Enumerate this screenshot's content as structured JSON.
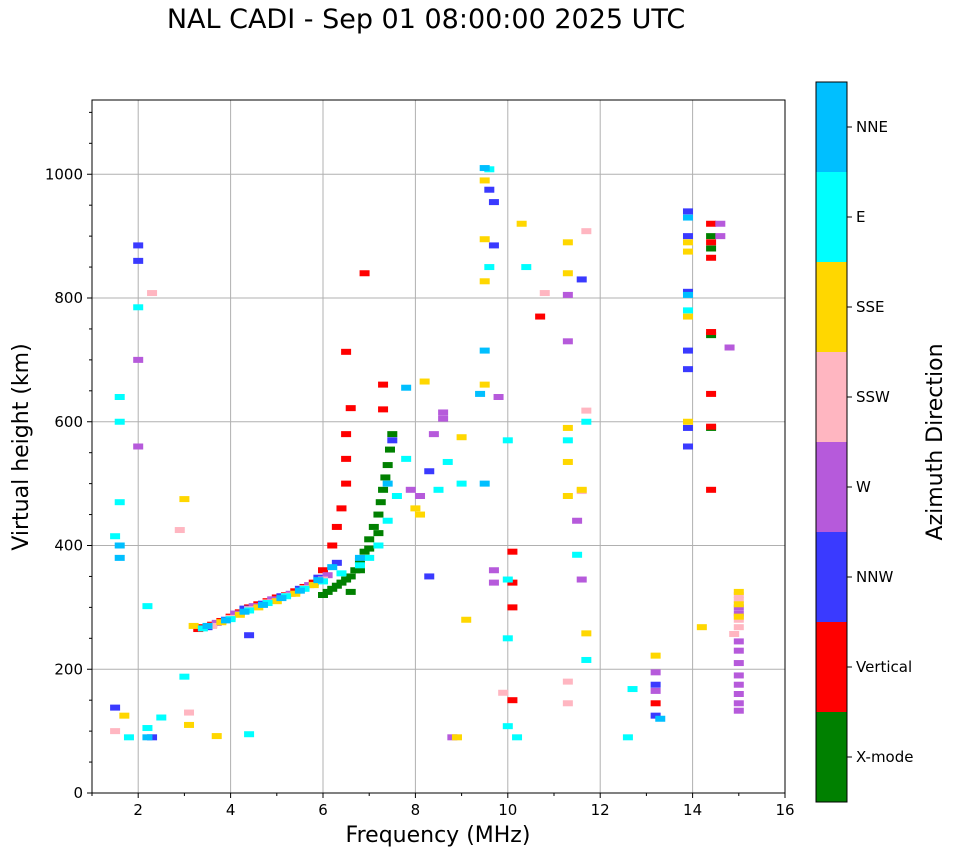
{
  "chart_data": {
    "type": "scatter",
    "title": "NAL CADI - Sep 01 08:00:00 2025 UTC",
    "xlabel": "Frequency (MHz)",
    "ylabel": "Virtual height (km)",
    "xlim": [
      1,
      16
    ],
    "ylim": [
      0,
      1120
    ],
    "xticks": [
      2,
      4,
      6,
      8,
      10,
      12,
      14,
      16
    ],
    "yticks": [
      0,
      200,
      400,
      600,
      800,
      1000
    ],
    "grid": true,
    "colorbar": {
      "label": "Azimuth Direction",
      "categories": [
        {
          "name": "X-mode",
          "color": "#008000"
        },
        {
          "name": "Vertical",
          "color": "#ff0000"
        },
        {
          "name": "NNW",
          "color": "#3a3aff"
        },
        {
          "name": "W",
          "color": "#b65adb"
        },
        {
          "name": "SSW",
          "color": "#ffb6c1"
        },
        {
          "name": "SSE",
          "color": "#ffd700"
        },
        {
          "name": "E",
          "color": "#00ffff"
        },
        {
          "name": "NNE",
          "color": "#00bfff"
        }
      ]
    },
    "series": [
      {
        "name": "X-mode",
        "points": [
          [
            6.0,
            320
          ],
          [
            6.1,
            325
          ],
          [
            6.2,
            330
          ],
          [
            6.3,
            335
          ],
          [
            6.4,
            340
          ],
          [
            6.5,
            345
          ],
          [
            6.6,
            350
          ],
          [
            6.7,
            360
          ],
          [
            6.8,
            375
          ],
          [
            6.9,
            390
          ],
          [
            7.0,
            410
          ],
          [
            7.1,
            430
          ],
          [
            7.2,
            450
          ],
          [
            7.25,
            470
          ],
          [
            7.3,
            490
          ],
          [
            7.35,
            510
          ],
          [
            7.4,
            530
          ],
          [
            7.45,
            555
          ],
          [
            7.5,
            580
          ],
          [
            6.6,
            325
          ],
          [
            6.8,
            360
          ],
          [
            7.0,
            395
          ],
          [
            7.2,
            420
          ],
          [
            14.4,
            880
          ],
          [
            14.4,
            900
          ],
          [
            14.4,
            740
          ],
          [
            14.4,
            590
          ]
        ]
      },
      {
        "name": "Vertical",
        "points": [
          [
            3.3,
            265
          ],
          [
            3.4,
            268
          ],
          [
            3.6,
            272
          ],
          [
            3.8,
            278
          ],
          [
            4.0,
            285
          ],
          [
            4.2,
            292
          ],
          [
            4.4,
            300
          ],
          [
            4.6,
            305
          ],
          [
            4.8,
            310
          ],
          [
            5.0,
            316
          ],
          [
            5.2,
            320
          ],
          [
            5.4,
            326
          ],
          [
            5.6,
            333
          ],
          [
            5.8,
            340
          ],
          [
            6.0,
            360
          ],
          [
            6.2,
            400
          ],
          [
            6.3,
            430
          ],
          [
            6.4,
            460
          ],
          [
            6.5,
            500
          ],
          [
            6.5,
            540
          ],
          [
            6.5,
            580
          ],
          [
            6.5,
            713
          ],
          [
            6.6,
            622
          ],
          [
            6.9,
            840
          ],
          [
            7.3,
            620
          ],
          [
            7.3,
            660
          ],
          [
            14.4,
            920
          ],
          [
            14.4,
            890
          ],
          [
            14.4,
            865
          ],
          [
            14.4,
            745
          ],
          [
            14.4,
            645
          ],
          [
            14.4,
            592
          ],
          [
            14.4,
            490
          ],
          [
            13.2,
            145
          ],
          [
            10.1,
            150
          ],
          [
            10.1,
            300
          ],
          [
            10.1,
            340
          ],
          [
            10.1,
            390
          ],
          [
            10.7,
            770
          ]
        ]
      },
      {
        "name": "NNW",
        "points": [
          [
            3.5,
            268
          ],
          [
            3.9,
            280
          ],
          [
            4.3,
            298
          ],
          [
            4.7,
            306
          ],
          [
            5.1,
            318
          ],
          [
            5.5,
            330
          ],
          [
            5.9,
            348
          ],
          [
            6.3,
            372
          ],
          [
            7.5,
            570
          ],
          [
            8.3,
            520
          ],
          [
            8.3,
            350
          ],
          [
            9.7,
            955
          ],
          [
            9.6,
            975
          ],
          [
            9.7,
            885
          ],
          [
            11.6,
            830
          ],
          [
            13.9,
            940
          ],
          [
            13.9,
            900
          ],
          [
            13.9,
            810
          ],
          [
            13.9,
            715
          ],
          [
            13.9,
            685
          ],
          [
            13.9,
            560
          ],
          [
            13.9,
            590
          ],
          [
            13.2,
            175
          ],
          [
            13.2,
            125
          ],
          [
            2.0,
            885
          ],
          [
            2.0,
            860
          ],
          [
            1.5,
            138
          ],
          [
            2.3,
            90
          ],
          [
            4.4,
            255
          ]
        ]
      },
      {
        "name": "W",
        "points": [
          [
            3.7,
            275
          ],
          [
            4.1,
            290
          ],
          [
            4.5,
            302
          ],
          [
            4.9,
            313
          ],
          [
            5.3,
            322
          ],
          [
            5.7,
            336
          ],
          [
            6.1,
            352
          ],
          [
            7.9,
            490
          ],
          [
            8.1,
            480
          ],
          [
            8.6,
            615
          ],
          [
            8.6,
            605
          ],
          [
            8.4,
            580
          ],
          [
            11.3,
            730
          ],
          [
            11.3,
            805
          ],
          [
            11.5,
            440
          ],
          [
            11.6,
            345
          ],
          [
            14.6,
            920
          ],
          [
            14.6,
            900
          ],
          [
            14.8,
            720
          ],
          [
            15.0,
            300
          ],
          [
            15.0,
            290
          ],
          [
            15.0,
            245
          ],
          [
            15.0,
            230
          ],
          [
            15.0,
            210
          ],
          [
            15.0,
            190
          ],
          [
            15.0,
            175
          ],
          [
            15.0,
            160
          ],
          [
            15.0,
            145
          ],
          [
            15.0,
            133
          ],
          [
            13.2,
            195
          ],
          [
            13.2,
            165
          ],
          [
            9.7,
            360
          ],
          [
            9.7,
            340
          ],
          [
            9.8,
            640
          ],
          [
            8.8,
            90
          ],
          [
            2.0,
            700
          ],
          [
            2.0,
            560
          ]
        ]
      },
      {
        "name": "SSW",
        "points": [
          [
            3.6,
            270
          ],
          [
            4.0,
            283
          ],
          [
            4.4,
            297
          ],
          [
            4.8,
            308
          ],
          [
            5.2,
            319
          ],
          [
            5.6,
            331
          ],
          [
            6.0,
            345
          ],
          [
            2.3,
            808
          ],
          [
            2.9,
            425
          ],
          [
            10.8,
            808
          ],
          [
            11.3,
            180
          ],
          [
            11.3,
            145
          ],
          [
            11.7,
            618
          ],
          [
            11.7,
            908
          ],
          [
            11.6,
            488
          ],
          [
            14.9,
            257
          ],
          [
            15.0,
            320
          ],
          [
            15.0,
            312
          ],
          [
            15.0,
            280
          ],
          [
            15.0,
            268
          ],
          [
            9.9,
            162
          ],
          [
            1.5,
            100
          ],
          [
            3.1,
            130
          ]
        ]
      },
      {
        "name": "SSE",
        "points": [
          [
            3.2,
            270
          ],
          [
            3.8,
            276
          ],
          [
            4.2,
            288
          ],
          [
            4.6,
            300
          ],
          [
            5.0,
            310
          ],
          [
            5.4,
            322
          ],
          [
            5.8,
            336
          ],
          [
            8.0,
            460
          ],
          [
            8.1,
            450
          ],
          [
            8.2,
            665
          ],
          [
            9.0,
            575
          ],
          [
            9.5,
            660
          ],
          [
            9.5,
            827
          ],
          [
            9.5,
            895
          ],
          [
            9.5,
            990
          ],
          [
            10.3,
            920
          ],
          [
            11.3,
            890
          ],
          [
            11.3,
            840
          ],
          [
            11.3,
            480
          ],
          [
            11.3,
            535
          ],
          [
            11.3,
            590
          ],
          [
            11.6,
            490
          ],
          [
            11.7,
            258
          ],
          [
            13.9,
            875
          ],
          [
            13.9,
            890
          ],
          [
            13.9,
            600
          ],
          [
            13.9,
            770
          ],
          [
            14.2,
            268
          ],
          [
            15.0,
            325
          ],
          [
            15.0,
            305
          ],
          [
            15.0,
            285
          ],
          [
            13.2,
            222
          ],
          [
            9.1,
            280
          ],
          [
            8.9,
            90
          ],
          [
            3.7,
            92
          ],
          [
            1.7,
            125
          ],
          [
            3.1,
            110
          ],
          [
            3.0,
            475
          ]
        ]
      },
      {
        "name": "E",
        "points": [
          [
            3.4,
            266
          ],
          [
            4.0,
            281
          ],
          [
            4.4,
            295
          ],
          [
            4.8,
            307
          ],
          [
            5.2,
            318
          ],
          [
            5.6,
            330
          ],
          [
            6.0,
            342
          ],
          [
            6.4,
            355
          ],
          [
            6.8,
            368
          ],
          [
            7.0,
            380
          ],
          [
            7.2,
            400
          ],
          [
            7.4,
            440
          ],
          [
            7.6,
            480
          ],
          [
            7.8,
            540
          ],
          [
            8.5,
            490
          ],
          [
            8.7,
            535
          ],
          [
            9.0,
            500
          ],
          [
            9.6,
            1008
          ],
          [
            9.6,
            850
          ],
          [
            10.0,
            570
          ],
          [
            10.0,
            345
          ],
          [
            10.0,
            250
          ],
          [
            10.0,
            108
          ],
          [
            10.2,
            90
          ],
          [
            10.4,
            850
          ],
          [
            11.3,
            570
          ],
          [
            11.5,
            385
          ],
          [
            11.7,
            600
          ],
          [
            11.7,
            215
          ],
          [
            12.7,
            168
          ],
          [
            12.6,
            90
          ],
          [
            13.9,
            780
          ],
          [
            4.4,
            95
          ],
          [
            2.2,
            105
          ],
          [
            2.5,
            122
          ],
          [
            3.0,
            188
          ],
          [
            1.6,
            600
          ],
          [
            1.6,
            640
          ],
          [
            1.6,
            470
          ],
          [
            1.5,
            415
          ],
          [
            2.0,
            785
          ],
          [
            2.2,
            302
          ],
          [
            1.8,
            90
          ]
        ]
      },
      {
        "name": "NNE",
        "points": [
          [
            3.5,
            270
          ],
          [
            3.9,
            279
          ],
          [
            4.3,
            293
          ],
          [
            4.7,
            304
          ],
          [
            5.1,
            315
          ],
          [
            5.5,
            327
          ],
          [
            5.9,
            344
          ],
          [
            6.2,
            365
          ],
          [
            6.8,
            380
          ],
          [
            7.4,
            500
          ],
          [
            7.8,
            655
          ],
          [
            9.5,
            500
          ],
          [
            9.4,
            645
          ],
          [
            9.5,
            715
          ],
          [
            9.5,
            1010
          ],
          [
            13.9,
            930
          ],
          [
            13.9,
            805
          ],
          [
            13.3,
            120
          ],
          [
            1.6,
            400
          ],
          [
            1.6,
            380
          ],
          [
            2.2,
            90
          ]
        ]
      }
    ]
  }
}
